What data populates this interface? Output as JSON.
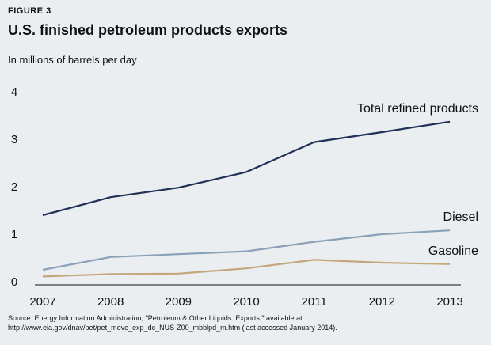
{
  "figure": {
    "label": "FIGURE 3",
    "title": "U.S. finished petroleum products exports",
    "subtitle": "In millions of barrels per day",
    "source_line1": "Source: Energy Information Administration, \"Petroleum & Other Liquids: Exports,\" available at",
    "source_line2": "http://www.eia.gov/dnav/pet/pet_move_exp_dc_NUS-Z00_mbblpd_m.htm (last accessed January 2014)."
  },
  "chart_data": {
    "type": "line",
    "title": "U.S. finished petroleum products exports",
    "ylabel": "In millions of barrels per day",
    "xlabel": "",
    "x": [
      2007,
      2008,
      2009,
      2010,
      2011,
      2012,
      2013
    ],
    "ylim": [
      0,
      4
    ],
    "yticks": [
      0,
      1,
      2,
      3,
      4
    ],
    "grid": false,
    "series": [
      {
        "name": "Total refined products",
        "color": "#1f3157",
        "values": [
          1.4,
          1.78,
          1.98,
          2.31,
          2.94,
          3.15,
          3.37
        ]
      },
      {
        "name": "Diesel",
        "color": "#8aa1b8",
        "values": [
          0.25,
          0.52,
          0.58,
          0.64,
          0.84,
          1.0,
          1.08
        ]
      },
      {
        "name": "Gasoline",
        "color": "#c4a67b",
        "values": [
          0.11,
          0.16,
          0.17,
          0.28,
          0.46,
          0.4,
          0.37
        ]
      }
    ]
  }
}
